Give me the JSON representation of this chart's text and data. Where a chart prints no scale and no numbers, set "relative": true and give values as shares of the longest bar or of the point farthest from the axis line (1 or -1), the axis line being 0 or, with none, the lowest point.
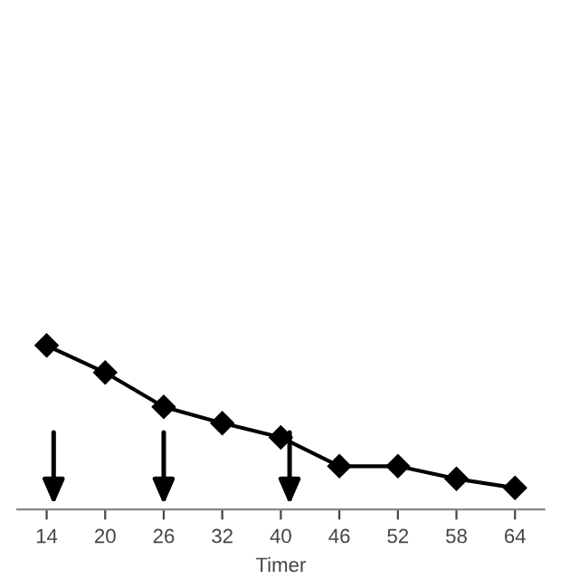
{
  "chart_data": {
    "type": "line",
    "xlabel": "Timer",
    "relative": true,
    "marker": "diamond",
    "color": "#000000",
    "categories": [
      "14",
      "20",
      "26",
      "32",
      "40",
      "46",
      "52",
      "58",
      "64"
    ],
    "values": [
      1,
      0.835,
      0.626,
      0.527,
      0.44,
      0.264,
      0.264,
      0.187,
      0.132
    ]
  }
}
